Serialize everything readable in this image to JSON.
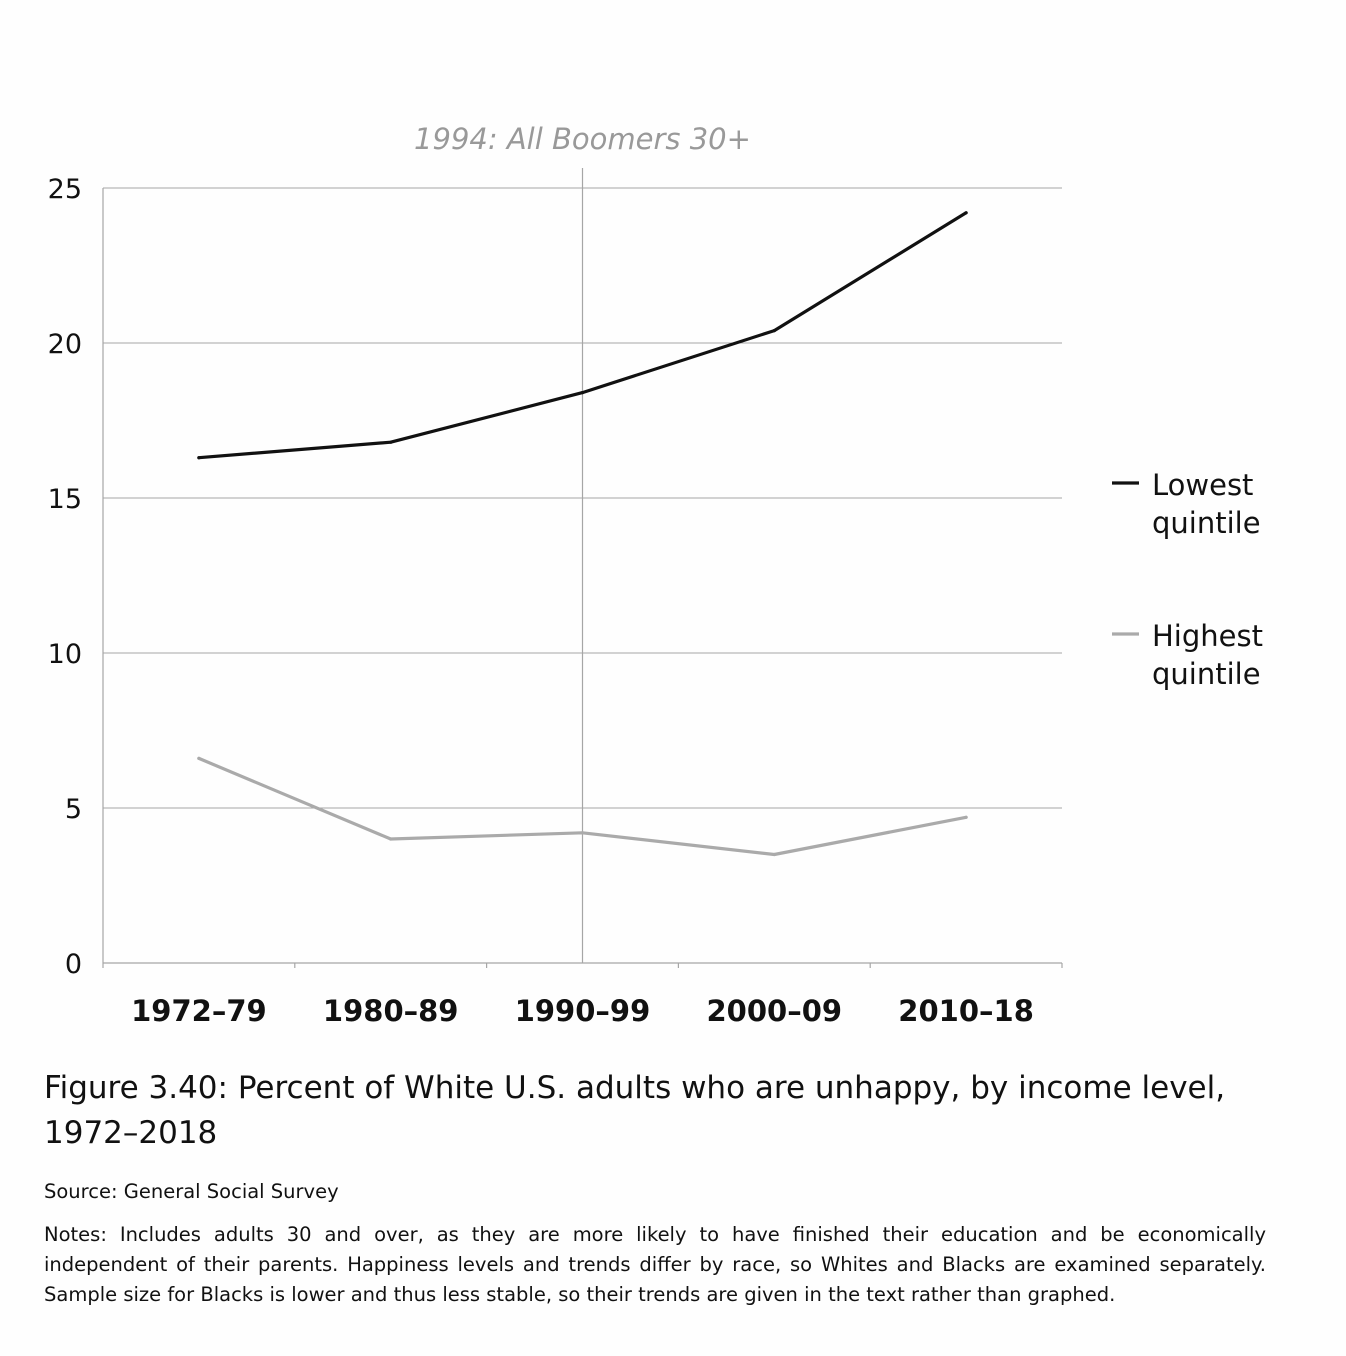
{
  "chart_data": {
    "type": "line",
    "categories": [
      "1972–79",
      "1980–89",
      "1990–99",
      "2000–09",
      "2010–18"
    ],
    "series": [
      {
        "name": "Lowest quintile",
        "name_lines": [
          "Lowest",
          "quintile"
        ],
        "color": "#111111",
        "values": [
          16.3,
          16.8,
          18.4,
          20.4,
          24.2
        ]
      },
      {
        "name": "Highest quintile",
        "name_lines": [
          "Highest",
          "quintile"
        ],
        "color": "#aaaaaa",
        "values": [
          6.6,
          4.0,
          4.2,
          3.5,
          4.7
        ]
      }
    ],
    "ylim": [
      0,
      25
    ],
    "yticks": [
      0,
      5,
      10,
      15,
      20,
      25
    ],
    "ytick_labels": [
      "0",
      "5",
      "10",
      "15",
      "20",
      "25"
    ],
    "grid": true,
    "legend": "right",
    "annotation": {
      "label": "1994: All Boomers 30+",
      "x_category_position": 2.0
    }
  },
  "caption": "Figure 3.40: Percent of White U.S. adults who are unhappy, by income level, 1972–2018",
  "source": "Source: General Social Survey",
  "notes": "Notes: Includes adults 30 and over, as they are more likely to have finished their education and be economically independent of their parents. Happiness levels and trends differ by race, so Whites and Blacks are examined separately. Sample size for Blacks is lower and thus less stable, so their trends are given in the text rather than graphed."
}
